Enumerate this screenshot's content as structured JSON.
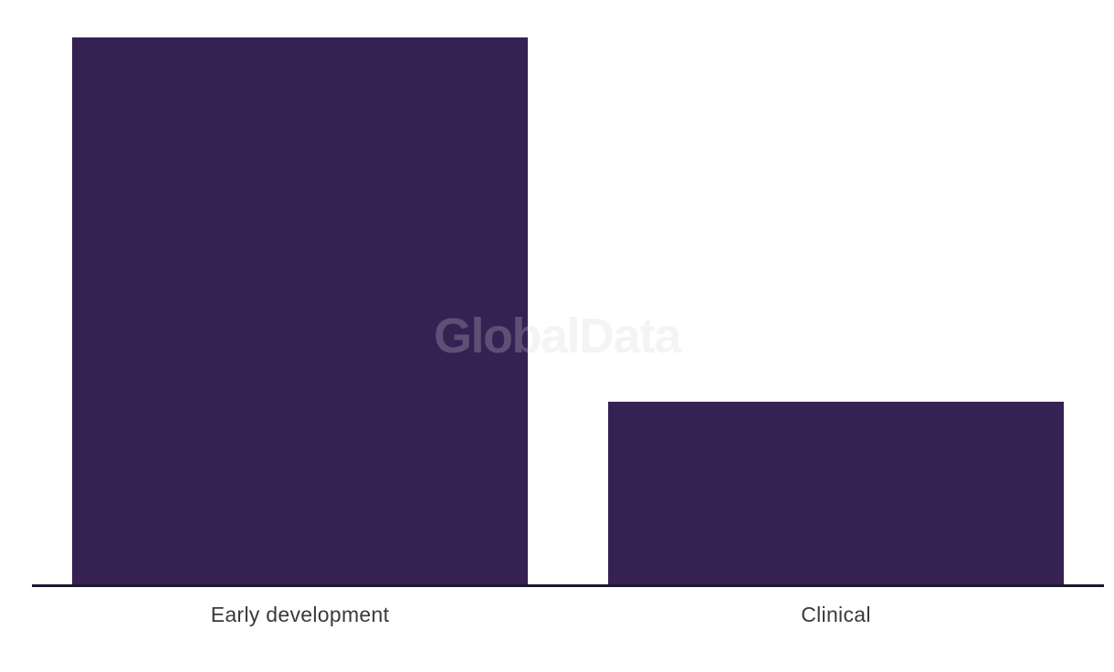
{
  "chart_data": {
    "type": "bar",
    "categories": [
      "Early development",
      "Clinical"
    ],
    "values": [
      3,
      1
    ],
    "title": "",
    "xlabel": "",
    "ylabel": "",
    "ylim": [
      0,
      3
    ],
    "value_axis_visible": false,
    "gridlines": false,
    "legend": "none",
    "bar_color": "#362153",
    "axis_line_color": "#191a2e",
    "label_color": "#3a3a3a",
    "background": "#ffffff"
  },
  "watermark": {
    "text": "GlobalData",
    "color": "#d7d7d7",
    "opacity": 0.25
  }
}
